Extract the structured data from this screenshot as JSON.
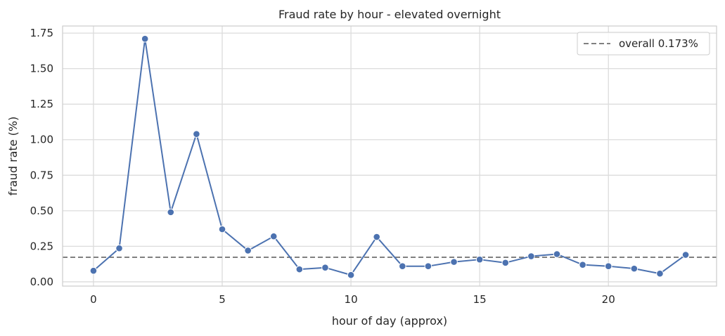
{
  "chart_data": {
    "type": "line",
    "title": "Fraud rate by hour - elevated overnight",
    "xlabel": "hour of day (approx)",
    "ylabel": "fraud rate (%)",
    "xlim": [
      -1.2,
      24.2
    ],
    "ylim": [
      -0.03,
      1.8
    ],
    "xticks": [
      0,
      5,
      10,
      15,
      20
    ],
    "xtick_labels": [
      "0",
      "5",
      "10",
      "15",
      "20"
    ],
    "yticks": [
      0.0,
      0.25,
      0.5,
      0.75,
      1.0,
      1.25,
      1.5,
      1.75
    ],
    "ytick_labels": [
      "0.00",
      "0.25",
      "0.50",
      "0.75",
      "1.00",
      "1.25",
      "1.50",
      "1.75"
    ],
    "grid": true,
    "legend_position": "top-right",
    "series": [
      {
        "color": "#4c72b0",
        "x": [
          0,
          1,
          2,
          3,
          4,
          5,
          6,
          7,
          8,
          9,
          10,
          11,
          12,
          13,
          14,
          15,
          16,
          17,
          18,
          19,
          20,
          21,
          22,
          23
        ],
        "y": [
          0.078,
          0.236,
          1.71,
          0.49,
          1.04,
          0.37,
          0.22,
          0.32,
          0.088,
          0.1,
          0.048,
          0.316,
          0.11,
          0.11,
          0.14,
          0.157,
          0.134,
          0.18,
          0.195,
          0.12,
          0.11,
          0.093,
          0.058,
          0.19
        ]
      }
    ],
    "reference_line": {
      "label": "overall 0.173%",
      "y": 0.173,
      "color": "#808080",
      "style": "dashed"
    }
  }
}
